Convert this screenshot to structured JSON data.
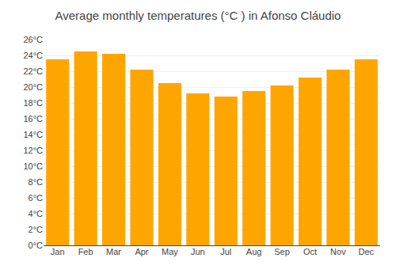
{
  "chart_data": {
    "type": "bar",
    "title": "Average monthly temperatures (°C ) in Afonso Cláudio",
    "categories": [
      "Jan",
      "Feb",
      "Mar",
      "Apr",
      "May",
      "Jun",
      "Jul",
      "Aug",
      "Sep",
      "Oct",
      "Nov",
      "Dec"
    ],
    "values": [
      23.5,
      24.5,
      24.2,
      22.2,
      20.5,
      19.2,
      18.8,
      19.5,
      20.2,
      21.2,
      22.2,
      23.5
    ],
    "color": "#FFA500",
    "ylim": [
      0,
      26
    ],
    "yticks": [
      {
        "value": 0,
        "label": "0°C"
      },
      {
        "value": 2,
        "label": "2°C"
      },
      {
        "value": 4,
        "label": "4°C"
      },
      {
        "value": 6,
        "label": "6°C"
      },
      {
        "value": 8,
        "label": "8°C"
      },
      {
        "value": 10,
        "label": "10°C"
      },
      {
        "value": 12,
        "label": "12°C"
      },
      {
        "value": 14,
        "label": "14°C"
      },
      {
        "value": 16,
        "label": "16°C"
      },
      {
        "value": 18,
        "label": "18°C"
      },
      {
        "value": 20,
        "label": "20°C"
      },
      {
        "value": 22,
        "label": "22°C"
      },
      {
        "value": 24,
        "label": "24°C"
      },
      {
        "value": 26,
        "label": "26°C"
      }
    ],
    "grid": true
  }
}
